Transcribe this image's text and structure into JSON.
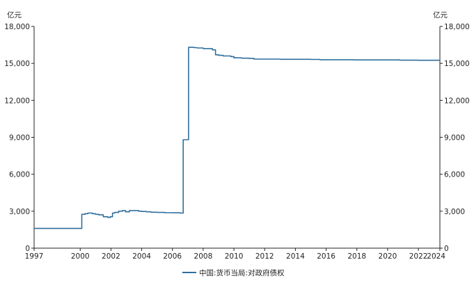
{
  "chart_data": {
    "type": "line",
    "ylabel_left": "亿元",
    "ylabel_right": "亿元",
    "ylim": [
      0,
      18000
    ],
    "yticks": [
      0,
      3000,
      6000,
      9000,
      12000,
      15000,
      18000
    ],
    "ytick_labels": [
      "0",
      "3,000",
      "6,000",
      "9,000",
      "12,000",
      "15,000",
      "18,000"
    ],
    "xlim": [
      1997,
      2023.4
    ],
    "xticks": [
      1997,
      2000,
      2002,
      2004,
      2006,
      2008,
      2010,
      2012,
      2014,
      2016,
      2018,
      2020,
      2022,
      2023.4
    ],
    "xtick_labels": [
      "1997",
      "2000",
      "2002",
      "2004",
      "2006",
      "2008",
      "2010",
      "2012",
      "2014",
      "2016",
      "2018",
      "2020",
      "2022",
      "2024"
    ],
    "legend_position": "bottom-center",
    "grid": false,
    "series": [
      {
        "name": "中国:货币当局:对政府债权",
        "color": "#2e6e9e",
        "step": true,
        "x": [
          1997.0,
          1999.95,
          2000.1,
          2000.3,
          2000.5,
          2000.8,
          2001.0,
          2001.2,
          2001.5,
          2001.8,
          2001.95,
          2002.1,
          2002.25,
          2002.5,
          2002.75,
          2002.95,
          2003.2,
          2003.5,
          2003.8,
          2004.0,
          2004.3,
          2004.6,
          2005.0,
          2005.5,
          2006.0,
          2006.5,
          2006.7,
          2006.95,
          2007.05,
          2007.2,
          2007.4,
          2007.6,
          2007.8,
          2008.0,
          2008.3,
          2008.6,
          2008.8,
          2009.0,
          2009.3,
          2009.6,
          2009.8,
          2010.0,
          2010.5,
          2011.0,
          2011.3,
          2011.6,
          2012.0,
          2013.0,
          2014.0,
          2015.0,
          2015.6,
          2016.0,
          2017.0,
          2017.8,
          2018.0,
          2019.0,
          2020.0,
          2020.8,
          2021.0,
          2022.0,
          2023.0,
          2023.4
        ],
        "y": [
          1600,
          1600,
          2750,
          2800,
          2850,
          2800,
          2750,
          2700,
          2550,
          2500,
          2550,
          2850,
          2900,
          3000,
          3050,
          2950,
          3050,
          3050,
          3000,
          2980,
          2950,
          2920,
          2900,
          2880,
          2870,
          2850,
          8800,
          8800,
          16300,
          16300,
          16280,
          16250,
          16250,
          16200,
          16200,
          16100,
          15700,
          15650,
          15600,
          15600,
          15550,
          15450,
          15420,
          15400,
          15350,
          15350,
          15350,
          15330,
          15330,
          15320,
          15300,
          15300,
          15300,
          15280,
          15280,
          15280,
          15280,
          15260,
          15260,
          15250,
          15250,
          15250
        ]
      }
    ]
  }
}
